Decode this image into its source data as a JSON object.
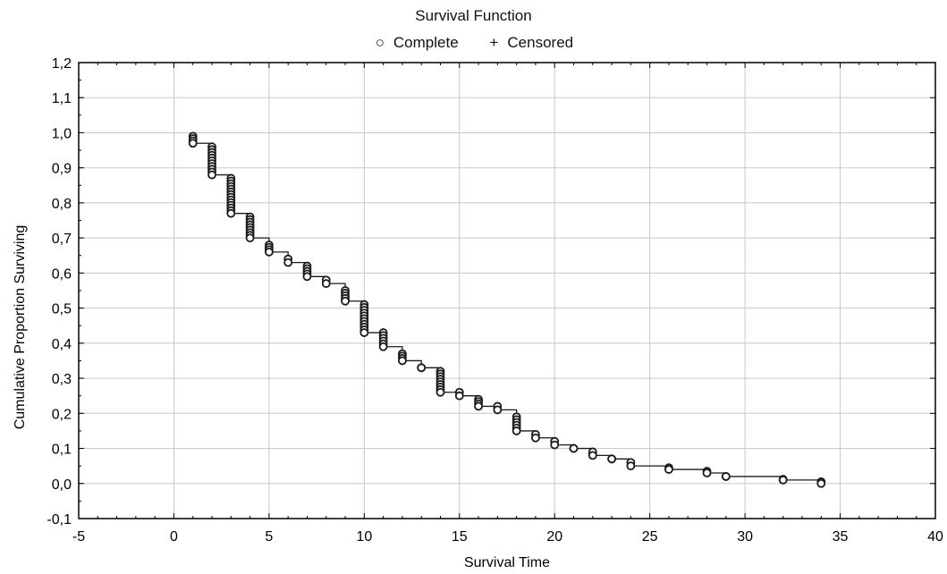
{
  "chart_data": {
    "type": "line",
    "title": "Survival Function",
    "xlabel": "Survival Time",
    "ylabel": "Cumulative Proportion Surviving",
    "xlim": [
      -5,
      40
    ],
    "ylim": [
      -0.1,
      1.2
    ],
    "x_ticks": [
      "-5",
      "0",
      "5",
      "10",
      "15",
      "20",
      "25",
      "30",
      "35",
      "40"
    ],
    "y_ticks": [
      "-0,1",
      "0,0",
      "0,1",
      "0,2",
      "0,3",
      "0,4",
      "0,5",
      "0,6",
      "0,7",
      "0,8",
      "0,9",
      "1,0",
      "1,1",
      "1,2"
    ],
    "grid": true,
    "legend": [
      {
        "name": "Complete",
        "marker": "circle"
      },
      {
        "name": "Censored",
        "marker": "plus"
      }
    ],
    "series": [
      {
        "name": "Complete",
        "step": true,
        "x": [
          1,
          2,
          3,
          4,
          5,
          6,
          7,
          8,
          9,
          10,
          11,
          12,
          13,
          14,
          15,
          16,
          17,
          18,
          19,
          20,
          21,
          22,
          23,
          24,
          26,
          28,
          29,
          32,
          34
        ],
        "y": [
          0.97,
          0.88,
          0.77,
          0.7,
          0.66,
          0.63,
          0.59,
          0.57,
          0.52,
          0.43,
          0.39,
          0.35,
          0.33,
          0.26,
          0.25,
          0.22,
          0.21,
          0.15,
          0.13,
          0.11,
          0.1,
          0.08,
          0.07,
          0.05,
          0.04,
          0.03,
          0.02,
          0.01,
          0.0
        ],
        "y_top": [
          0.99,
          0.96,
          0.87,
          0.76,
          0.68,
          0.64,
          0.62,
          0.58,
          0.55,
          0.51,
          0.43,
          0.37,
          0.33,
          0.32,
          0.26,
          0.24,
          0.22,
          0.19,
          0.14,
          0.12,
          0.1,
          0.09,
          0.07,
          0.06,
          0.045,
          0.035,
          0.02,
          0.012,
          0.005
        ]
      }
    ]
  },
  "colors": {
    "line": "#1a1a1a",
    "marker": "#1a1a1a",
    "grid": "#c8c8c8",
    "axis": "#000000"
  }
}
